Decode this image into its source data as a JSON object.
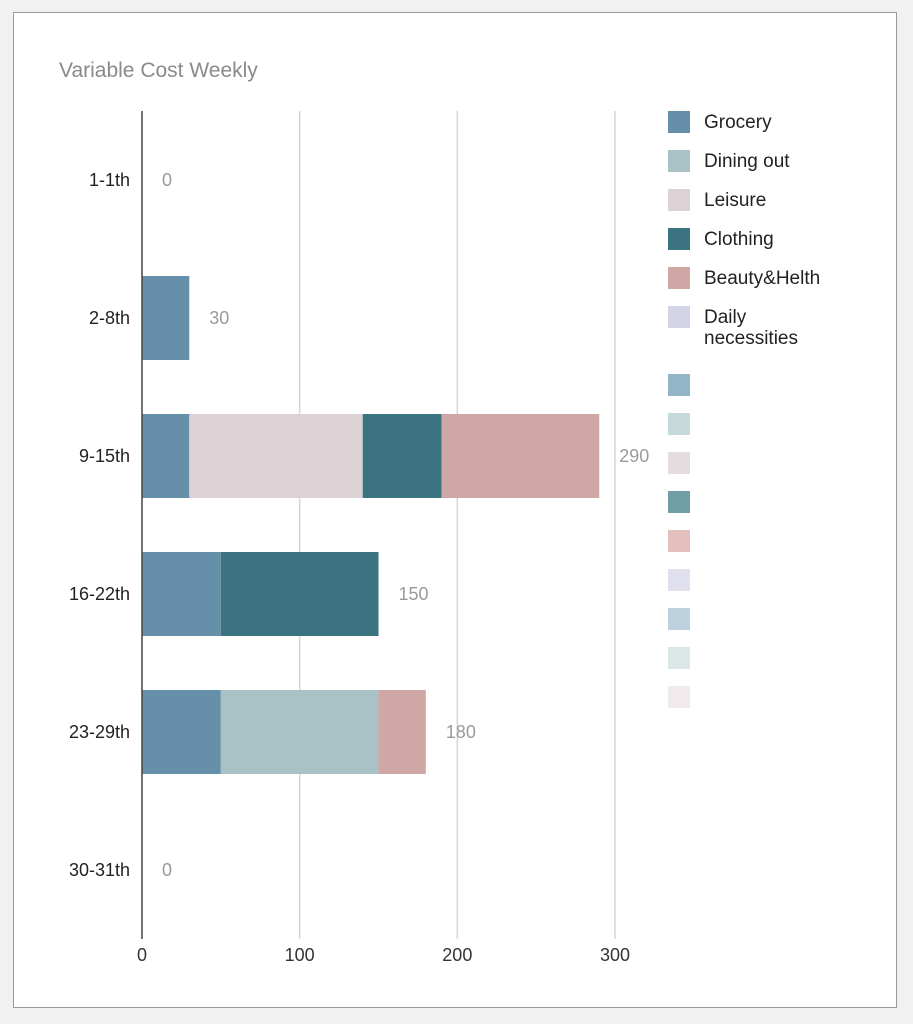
{
  "chart_data": {
    "type": "bar",
    "orientation": "horizontal",
    "stacked": true,
    "title": "Variable Cost Weekly",
    "xlabel": "",
    "ylabel": "",
    "categories": [
      "1-1th",
      "2-8th",
      "9-15th",
      "16-22th",
      "23-29th",
      "30-31th"
    ],
    "series": [
      {
        "name": "Grocery",
        "color": "#6690aa",
        "values": [
          0,
          30,
          30,
          50,
          50,
          0
        ]
      },
      {
        "name": "Dining out",
        "color": "#a9c2c6",
        "values": [
          0,
          0,
          0,
          0,
          100,
          0
        ]
      },
      {
        "name": "Leisure",
        "color": "#dcd1d4",
        "values": [
          0,
          0,
          110,
          0,
          0,
          0
        ]
      },
      {
        "name": "Clothing",
        "color": "#3b7480",
        "values": [
          0,
          0,
          50,
          100,
          0,
          0
        ]
      },
      {
        "name": "Beauty&Helth",
        "color": "#cfa7a5",
        "values": [
          0,
          0,
          100,
          0,
          30,
          0
        ]
      },
      {
        "name": "Daily necessities",
        "color": "#d3d3e6",
        "values": [
          0,
          0,
          0,
          0,
          0,
          0
        ]
      }
    ],
    "extra_legend_swatches": [
      "#94b4c8",
      "#c6dadb",
      "#e5dcdf",
      "#6f9ea5",
      "#e3bfbe",
      "#e0e0ee",
      "#bed1de",
      "#dbe6e7",
      "#f1eaec"
    ],
    "totals": [
      0,
      30,
      290,
      150,
      180,
      0
    ],
    "xticks": [
      0,
      100,
      200,
      300
    ],
    "xlim": [
      0,
      300
    ],
    "grid": true,
    "legend_position": "right"
  }
}
